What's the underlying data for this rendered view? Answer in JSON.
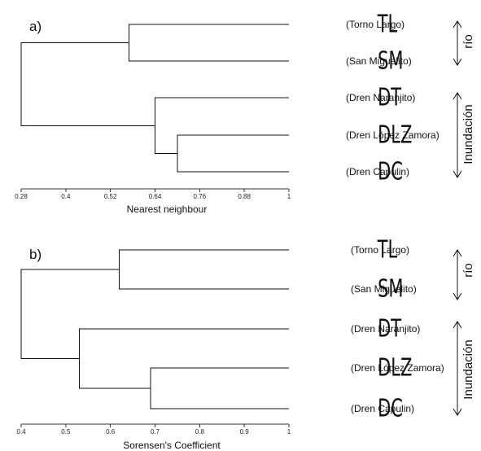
{
  "chart_data": [
    {
      "type": "dendrogram",
      "panel_label": "a)",
      "xlabel": "Nearest neighbour",
      "xlim": [
        0.28,
        1
      ],
      "ticks": [
        "0.28",
        "0.4",
        "0.52",
        "0.64",
        "0.76",
        "0.88",
        "1"
      ],
      "tick_values": [
        0.28,
        0.4,
        0.52,
        0.64,
        0.76,
        0.88,
        1
      ],
      "leaves": [
        {
          "code": "TL",
          "name": "(Torno Largo)"
        },
        {
          "code": "SM",
          "name": "(San Miguelito)"
        },
        {
          "code": "DT",
          "name": "(Dren Naranjito)"
        },
        {
          "code": "DLZ",
          "name": "(Dren López Zamora)"
        },
        {
          "code": "DC",
          "name": "(Dren Capulin)"
        }
      ],
      "merges": [
        {
          "children": [
            "DLZ",
            "DC"
          ],
          "height": 0.7
        },
        {
          "children": [
            "DT",
            "DLZ+DC"
          ],
          "height": 0.64
        },
        {
          "children": [
            "TL",
            "SM"
          ],
          "height": 0.57
        },
        {
          "children": [
            "TL+SM",
            "DT+DLZ+DC"
          ],
          "height": 0.28
        }
      ],
      "groups": [
        {
          "label": "río",
          "from": "TL",
          "to": "SM"
        },
        {
          "label": "Inundación",
          "from": "DT",
          "to": "DC"
        }
      ]
    },
    {
      "type": "dendrogram",
      "panel_label": "b)",
      "xlabel": "Sorensen's Coefficient",
      "xlim": [
        0.4,
        1
      ],
      "ticks": [
        "0.4",
        "0.5",
        "0.6",
        "0.7",
        "0.8",
        "0.9",
        "1"
      ],
      "tick_values": [
        0.4,
        0.5,
        0.6,
        0.7,
        0.8,
        0.9,
        1
      ],
      "leaves": [
        {
          "code": "TL",
          "name": "(Torno Largo)"
        },
        {
          "code": "SM",
          "name": "(San Miguelito)"
        },
        {
          "code": "DT",
          "name": "(Dren Naranjito)"
        },
        {
          "code": "DLZ",
          "name": "(Dren López Zamora)"
        },
        {
          "code": "DC",
          "name": "(Dren Capulin)"
        }
      ],
      "merges": [
        {
          "children": [
            "DLZ",
            "DC"
          ],
          "height": 0.69
        },
        {
          "children": [
            "TL",
            "SM"
          ],
          "height": 0.62
        },
        {
          "children": [
            "DT",
            "DLZ+DC"
          ],
          "height": 0.53
        },
        {
          "children": [
            "TL+SM",
            "DT+DLZ+DC"
          ],
          "height": 0.4
        }
      ],
      "groups": [
        {
          "label": "río",
          "from": "TL",
          "to": "SM"
        },
        {
          "label": "Inundación",
          "from": "DT",
          "to": "DC"
        }
      ]
    }
  ]
}
